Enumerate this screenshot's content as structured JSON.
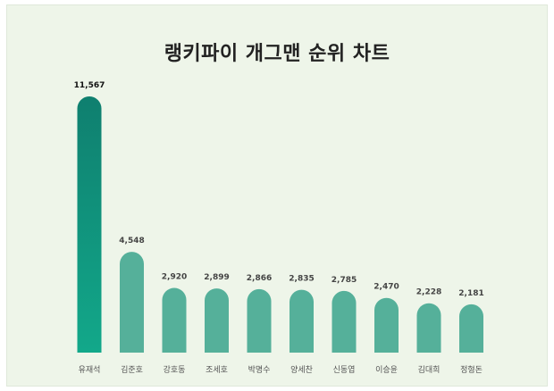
{
  "colors": {
    "background": "#eef5e9",
    "bar": "#55b09a",
    "top_bar_gradient": [
      "#0f7f6f",
      "#12a88a"
    ]
  },
  "chart_data": {
    "type": "bar",
    "title": "랭키파이 개그맨 순위 차트",
    "categories": [
      "유재석",
      "김준호",
      "강호동",
      "조세호",
      "박명수",
      "양세찬",
      "신동엽",
      "이승윤",
      "김대희",
      "정형돈"
    ],
    "values": [
      11567,
      4548,
      2920,
      2899,
      2866,
      2835,
      2785,
      2470,
      2228,
      2181
    ],
    "value_labels": [
      "11,567",
      "4,548",
      "2,920",
      "2,899",
      "2,866",
      "2,835",
      "2,785",
      "2,470",
      "2,228",
      "2,181"
    ],
    "xlabel": "",
    "ylabel": "",
    "ylim": [
      0,
      11567
    ],
    "grid": false,
    "legend": "none"
  }
}
